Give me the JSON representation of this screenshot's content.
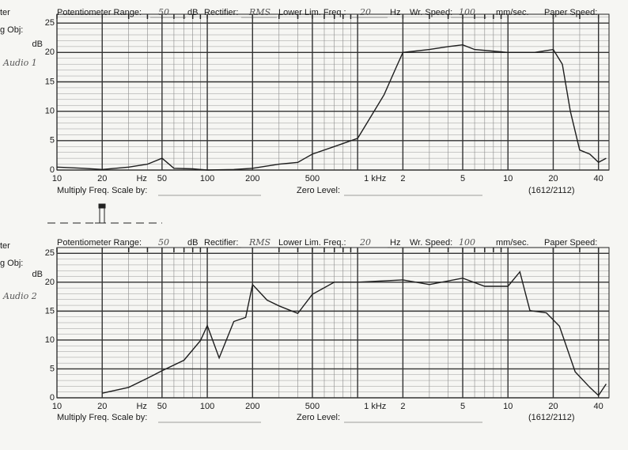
{
  "chart_data": [
    {
      "type": "line",
      "title": "Audio 1",
      "margin_labels": [
        "ter",
        "g Obj:"
      ],
      "header": [
        "Potentiometer Range:",
        "50",
        "dB",
        "Rectifier:",
        "RMS",
        "Lower Lim. Freq.:",
        "20",
        "Hz",
        "Wr. Speed:",
        "100",
        "mm/sec.",
        "Paper Speed:"
      ],
      "footer": [
        "Multiply Freq. Scale by:",
        "Zero Level:",
        "(1612/2112)"
      ],
      "y_unit": "dB",
      "x_unit": "Hz",
      "x": [
        10,
        15,
        20,
        30,
        40,
        50,
        60,
        80,
        100,
        150,
        200,
        300,
        400,
        500,
        700,
        1000,
        1200,
        1500,
        1800,
        2000,
        3000,
        4000,
        5000,
        6000,
        10000,
        15000,
        20000,
        23000,
        26000,
        30000,
        35000,
        40000,
        45000
      ],
      "series": [
        {
          "color": "#1e1e1e",
          "values": [
            0.5,
            0.3,
            0.1,
            0.5,
            1,
            2,
            0.3,
            0.2,
            0,
            0.1,
            0.3,
            1,
            1.3,
            2.7,
            4,
            5.4,
            8.7,
            12.8,
            17.4,
            20,
            20.5,
            21,
            21.3,
            20.5,
            20,
            20,
            20.5,
            18,
            10,
            3.4,
            2.7,
            1.3,
            2
          ]
        }
      ],
      "xlim": [
        10,
        47000
      ],
      "ylim": [
        0,
        26.5
      ],
      "xticks": [
        10,
        20,
        50,
        100,
        200,
        500,
        {
          "value": 1000,
          "label": "1 kHz"
        },
        {
          "value": 2000,
          "label": "2"
        },
        {
          "value": 5000,
          "label": "5"
        },
        {
          "value": 10000,
          "label": "10"
        },
        {
          "value": 20000,
          "label": "20"
        },
        {
          "value": 40000,
          "label": "40"
        }
      ],
      "yticks": [
        0,
        5,
        10,
        15,
        20,
        25
      ],
      "log_x": true,
      "grid": true,
      "minor_grid": true
    },
    {
      "type": "line",
      "title": "Audio 2",
      "margin_labels": [
        "ter",
        "g Obj:"
      ],
      "header": [
        "Potentiometer Range:",
        "50",
        "dB",
        "Rectifier:",
        "RMS",
        "Lower Lim. Freq.:",
        "20",
        "Hz",
        "Wr. Speed:",
        "100",
        "mm/sec.",
        "Paper Speed:"
      ],
      "footer": [
        "Multiply Freq. Scale by:",
        "Zero Level:",
        "(1612/2112)"
      ],
      "y_unit": "dB",
      "x_unit": "Hz",
      "x": [
        20,
        30,
        40,
        50,
        70,
        90,
        100,
        120,
        150,
        180,
        200,
        250,
        300,
        400,
        500,
        700,
        1000,
        2000,
        3000,
        5000,
        7000,
        10000,
        12000,
        14000,
        18000,
        22000,
        28000,
        35000,
        40000,
        45000
      ],
      "series": [
        {
          "color": "#1e1e1e",
          "values": [
            0.8,
            1.8,
            3.4,
            4.7,
            6.5,
            9.9,
            12.5,
            6.9,
            13.2,
            13.9,
            19.6,
            16.9,
            15.9,
            14.6,
            17.9,
            20,
            20,
            20.4,
            19.6,
            20.7,
            19.3,
            19.3,
            21.8,
            15.1,
            14.7,
            12.4,
            4.5,
            1.8,
            0.4,
            2.4
          ]
        }
      ],
      "xlim": [
        10,
        47000
      ],
      "ylim": [
        0,
        26
      ],
      "xticks": [
        10,
        20,
        50,
        100,
        200,
        500,
        {
          "value": 1000,
          "label": "1 kHz"
        },
        {
          "value": 2000,
          "label": "2"
        },
        {
          "value": 5000,
          "label": "5"
        },
        {
          "value": 10000,
          "label": "10"
        },
        {
          "value": 20000,
          "label": "20"
        },
        {
          "value": 40000,
          "label": "40"
        }
      ],
      "yticks": [
        0,
        5,
        10,
        15,
        20,
        25
      ],
      "log_x": true,
      "grid": true,
      "minor_grid": true
    }
  ]
}
